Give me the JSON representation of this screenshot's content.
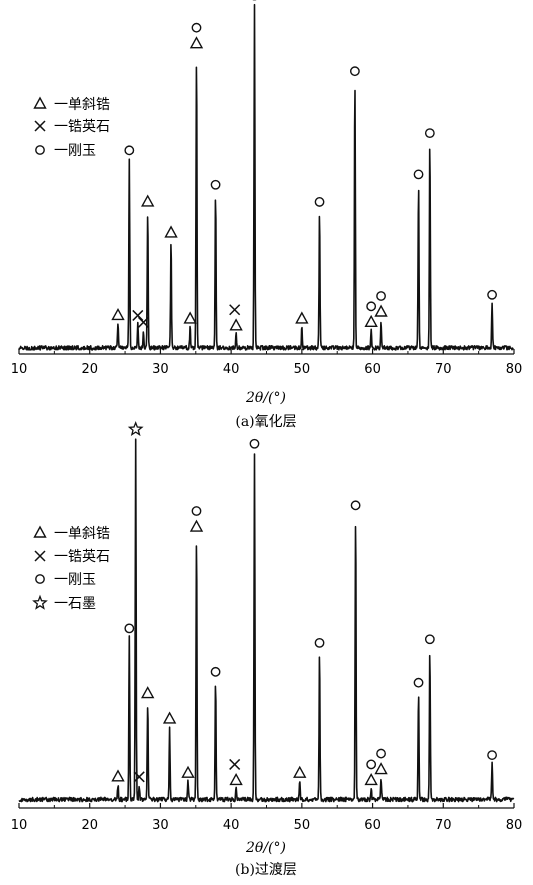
{
  "chart_data": [
    {
      "type": "line",
      "caption": "(a)氧化层",
      "xlabel": "2θ/(°)",
      "xlim": [
        10,
        80
      ],
      "xticks": [
        10,
        20,
        30,
        40,
        50,
        60,
        70,
        80
      ],
      "legend": {
        "placement": "top-left",
        "entries": [
          {
            "marker": "triangle",
            "label": "一单斜锆"
          },
          {
            "marker": "cross",
            "label": "一锆英石"
          },
          {
            "marker": "circle",
            "label": "一刚玉"
          }
        ]
      },
      "peaks": [
        {
          "x": 24.0,
          "h": 0.07,
          "marker": "triangle"
        },
        {
          "x": 25.6,
          "h": 0.55,
          "marker": "circle"
        },
        {
          "x": 26.8,
          "h": 0.07,
          "marker": "cross"
        },
        {
          "x": 27.6,
          "h": 0.05,
          "marker": "cross"
        },
        {
          "x": 28.2,
          "h": 0.4,
          "marker": "triangle"
        },
        {
          "x": 31.5,
          "h": 0.31,
          "marker": "triangle"
        },
        {
          "x": 34.2,
          "h": 0.06,
          "marker": "triangle"
        },
        {
          "x": 35.1,
          "h": 0.86,
          "marker": "triangle"
        },
        {
          "x": 37.8,
          "h": 0.45,
          "marker": "circle"
        },
        {
          "x": 40.7,
          "h": 0.04,
          "marker": "triangle"
        },
        {
          "x": 43.3,
          "h": 1.0,
          "marker": "circle"
        },
        {
          "x": 50.0,
          "h": 0.06,
          "marker": "triangle"
        },
        {
          "x": 52.5,
          "h": 0.4,
          "marker": "circle"
        },
        {
          "x": 57.5,
          "h": 0.78,
          "marker": "circle"
        },
        {
          "x": 59.8,
          "h": 0.05,
          "marker": "triangle"
        },
        {
          "x": 61.2,
          "h": 0.08,
          "marker": "triangle"
        },
        {
          "x": 66.5,
          "h": 0.48,
          "marker": "circle"
        },
        {
          "x": 68.1,
          "h": 0.6,
          "marker": "circle"
        },
        {
          "x": 76.9,
          "h": 0.13,
          "marker": "circle"
        }
      ],
      "extra_markers": [
        {
          "x": 40.5,
          "marker": "cross"
        },
        {
          "x": 35.1,
          "marker": "circle"
        },
        {
          "x": 59.8,
          "marker": "circle"
        },
        {
          "x": 61.2,
          "marker": "circle"
        }
      ]
    },
    {
      "type": "line",
      "caption": "(b)过渡层",
      "xlabel": "2θ/(°)",
      "xlim": [
        10,
        80
      ],
      "xticks": [
        10,
        20,
        30,
        40,
        50,
        60,
        70,
        80
      ],
      "legend": {
        "placement": "top-left",
        "entries": [
          {
            "marker": "triangle",
            "label": "一单斜锆"
          },
          {
            "marker": "cross",
            "label": "一锆英石"
          },
          {
            "marker": "circle",
            "label": "一刚玉"
          },
          {
            "marker": "star",
            "label": "一石墨"
          }
        ]
      },
      "peaks": [
        {
          "x": 24.0,
          "h": 0.04,
          "marker": "triangle"
        },
        {
          "x": 25.6,
          "h": 0.45,
          "marker": "circle"
        },
        {
          "x": 26.5,
          "h": 1.0,
          "marker": "star"
        },
        {
          "x": 27.0,
          "h": 0.04,
          "marker": "cross"
        },
        {
          "x": 28.2,
          "h": 0.27,
          "marker": "triangle"
        },
        {
          "x": 31.3,
          "h": 0.2,
          "marker": "triangle"
        },
        {
          "x": 33.9,
          "h": 0.05,
          "marker": "triangle"
        },
        {
          "x": 35.1,
          "h": 0.73,
          "marker": "triangle"
        },
        {
          "x": 37.8,
          "h": 0.33,
          "marker": "circle"
        },
        {
          "x": 40.7,
          "h": 0.03,
          "marker": "triangle"
        },
        {
          "x": 43.3,
          "h": 0.96,
          "marker": "circle"
        },
        {
          "x": 49.7,
          "h": 0.05,
          "marker": "triangle"
        },
        {
          "x": 52.5,
          "h": 0.41,
          "marker": "circle"
        },
        {
          "x": 57.6,
          "h": 0.79,
          "marker": "circle"
        },
        {
          "x": 59.8,
          "h": 0.03,
          "marker": "triangle"
        },
        {
          "x": 61.2,
          "h": 0.06,
          "marker": "triangle"
        },
        {
          "x": 66.5,
          "h": 0.3,
          "marker": "circle"
        },
        {
          "x": 68.1,
          "h": 0.42,
          "marker": "circle"
        },
        {
          "x": 76.9,
          "h": 0.1,
          "marker": "circle"
        }
      ],
      "extra_markers": [
        {
          "x": 40.5,
          "marker": "cross"
        },
        {
          "x": 35.1,
          "marker": "circle"
        },
        {
          "x": 59.8,
          "marker": "circle"
        },
        {
          "x": 61.2,
          "marker": "circle"
        }
      ]
    }
  ]
}
